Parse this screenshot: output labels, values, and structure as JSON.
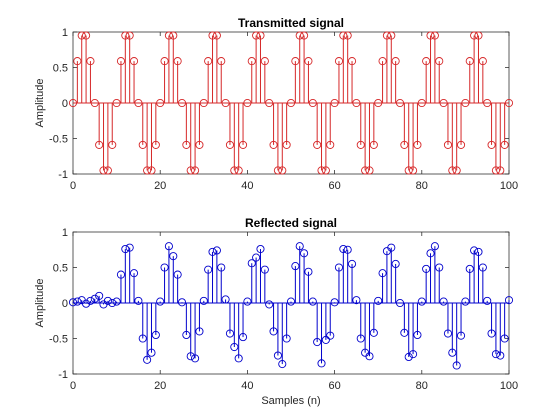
{
  "chart_data": [
    {
      "type": "stem",
      "title": "Transmitted signal",
      "xlabel": "",
      "ylabel": "Amplitude",
      "xlim": [
        0,
        100
      ],
      "ylim": [
        -1,
        1
      ],
      "xticks": [
        "0",
        "20",
        "40",
        "60",
        "80",
        "100"
      ],
      "yticks": [
        "-1",
        "-0.5",
        "0",
        "0.5",
        "1"
      ],
      "color": "#d62728",
      "marker": "open-circle",
      "x": [
        0,
        1,
        2,
        3,
        4,
        5,
        6,
        7,
        8,
        9,
        10,
        11,
        12,
        13,
        14,
        15,
        16,
        17,
        18,
        19,
        20,
        21,
        22,
        23,
        24,
        25,
        26,
        27,
        28,
        29,
        30,
        31,
        32,
        33,
        34,
        35,
        36,
        37,
        38,
        39,
        40,
        41,
        42,
        43,
        44,
        45,
        46,
        47,
        48,
        49,
        50,
        51,
        52,
        53,
        54,
        55,
        56,
        57,
        58,
        59,
        60,
        61,
        62,
        63,
        64,
        65,
        66,
        67,
        68,
        69,
        70,
        71,
        72,
        73,
        74,
        75,
        76,
        77,
        78,
        79,
        80,
        81,
        82,
        83,
        84,
        85,
        86,
        87,
        88,
        89,
        90,
        91,
        92,
        93,
        94,
        95,
        96,
        97,
        98,
        99,
        100
      ],
      "values": [
        0,
        0.59,
        0.95,
        0.95,
        0.59,
        0,
        -0.59,
        -0.95,
        -0.95,
        -0.59,
        0,
        0.59,
        0.95,
        0.95,
        0.59,
        0,
        -0.59,
        -0.95,
        -0.95,
        -0.59,
        0,
        0.59,
        0.95,
        0.95,
        0.59,
        0,
        -0.59,
        -0.95,
        -0.95,
        -0.59,
        0,
        0.59,
        0.95,
        0.95,
        0.59,
        0,
        -0.59,
        -0.95,
        -0.95,
        -0.59,
        0,
        0.59,
        0.95,
        0.95,
        0.59,
        0,
        -0.59,
        -0.95,
        -0.95,
        -0.59,
        0,
        0.59,
        0.95,
        0.95,
        0.59,
        0,
        -0.59,
        -0.95,
        -0.95,
        -0.59,
        0,
        0.59,
        0.95,
        0.95,
        0.59,
        0,
        -0.59,
        -0.95,
        -0.95,
        -0.59,
        0,
        0.59,
        0.95,
        0.95,
        0.59,
        0,
        -0.59,
        -0.95,
        -0.95,
        -0.59,
        0,
        0.59,
        0.95,
        0.95,
        0.59,
        0,
        -0.59,
        -0.95,
        -0.95,
        -0.59,
        0,
        0.59,
        0.95,
        0.95,
        0.59,
        0,
        -0.59,
        -0.95,
        -0.95,
        -0.59,
        0
      ]
    },
    {
      "type": "stem",
      "title": "Reflected signal",
      "xlabel": "Samples (n)",
      "ylabel": "Amplitude",
      "xlim": [
        0,
        100
      ],
      "ylim": [
        -1,
        1
      ],
      "xticks": [
        "0",
        "20",
        "40",
        "60",
        "80",
        "100"
      ],
      "yticks": [
        "-1",
        "-0.5",
        "0",
        "0.5",
        "1"
      ],
      "color": "#0000cc",
      "marker": "open-circle",
      "x": [
        0,
        1,
        2,
        3,
        4,
        5,
        6,
        7,
        8,
        9,
        10,
        11,
        12,
        13,
        14,
        15,
        16,
        17,
        18,
        19,
        20,
        21,
        22,
        23,
        24,
        25,
        26,
        27,
        28,
        29,
        30,
        31,
        32,
        33,
        34,
        35,
        36,
        37,
        38,
        39,
        40,
        41,
        42,
        43,
        44,
        45,
        46,
        47,
        48,
        49,
        50,
        51,
        52,
        53,
        54,
        55,
        56,
        57,
        58,
        59,
        60,
        61,
        62,
        63,
        64,
        65,
        66,
        67,
        68,
        69,
        70,
        71,
        72,
        73,
        74,
        75,
        76,
        77,
        78,
        79,
        80,
        81,
        82,
        83,
        84,
        85,
        86,
        87,
        88,
        89,
        90,
        91,
        92,
        93,
        94,
        95,
        96,
        97,
        98,
        99,
        100
      ],
      "values": [
        0.01,
        0.02,
        0.04,
        -0.01,
        0.03,
        0.06,
        0.1,
        -0.02,
        0.03,
        0.0,
        0.02,
        0.4,
        0.76,
        0.78,
        0.42,
        0.03,
        -0.5,
        -0.8,
        -0.7,
        -0.45,
        0.02,
        0.5,
        0.8,
        0.66,
        0.4,
        0.01,
        -0.45,
        -0.75,
        -0.78,
        -0.4,
        0.03,
        0.47,
        0.72,
        0.74,
        0.5,
        0.05,
        -0.43,
        -0.62,
        -0.78,
        -0.48,
        0.02,
        0.56,
        0.64,
        0.76,
        0.47,
        -0.02,
        -0.4,
        -0.74,
        -0.86,
        -0.5,
        0.02,
        0.52,
        0.8,
        0.7,
        0.44,
        0.02,
        -0.55,
        -0.85,
        -0.52,
        -0.46,
        0.01,
        0.5,
        0.76,
        0.75,
        0.55,
        0.04,
        -0.5,
        -0.7,
        -0.75,
        -0.42,
        0.03,
        0.42,
        0.73,
        0.78,
        0.55,
        0.0,
        -0.42,
        -0.76,
        -0.72,
        -0.45,
        0.02,
        0.48,
        0.7,
        0.8,
        0.5,
        0.02,
        -0.43,
        -0.7,
        -0.88,
        -0.46,
        0.02,
        0.48,
        0.74,
        0.72,
        0.5,
        0.03,
        -0.43,
        -0.72,
        -0.74,
        -0.5,
        0.04
      ]
    }
  ]
}
